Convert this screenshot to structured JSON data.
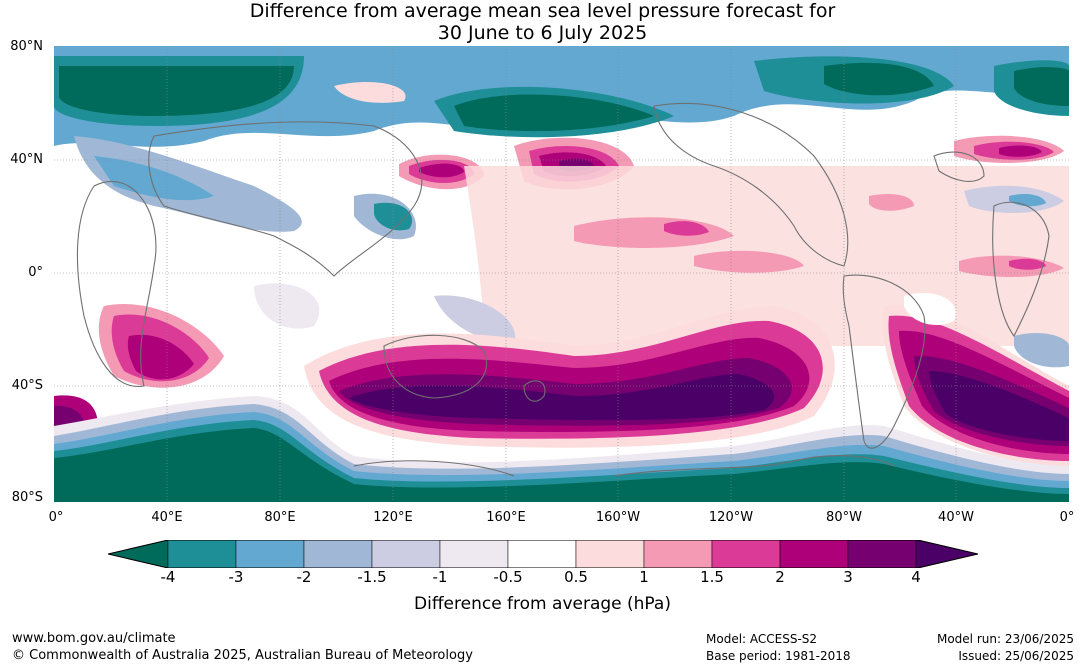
{
  "title": {
    "line1": "Difference from average mean sea level pressure forecast for",
    "line2": "30 June to 6 July 2025"
  },
  "map": {
    "lat_labels": [
      "80°N",
      "40°N",
      "0°",
      "40°S",
      "80°S"
    ],
    "lon_labels": [
      "0°",
      "40°E",
      "80°E",
      "120°E",
      "160°E",
      "160°W",
      "120°W",
      "80°W",
      "40°W",
      "0°"
    ]
  },
  "colorbar": {
    "ticks": [
      "-4",
      "-3",
      "-2",
      "-1.5",
      "-1",
      "-0.5",
      "0.5",
      "1",
      "1.5",
      "2",
      "3",
      "4"
    ],
    "colors": [
      "#006b5b",
      "#1f8f97",
      "#62a8d0",
      "#a0b8d6",
      "#cccce2",
      "#eee8f0",
      "#ffffff",
      "#fcdcdc",
      "#f49ab5",
      "#dc3a97",
      "#ad0079",
      "#770070",
      "#4b0068"
    ],
    "label": "Difference from average (hPa)"
  },
  "footer": {
    "website": "www.bom.gov.au/climate",
    "copyright": "© Commonwealth of Australia 2025, Australian Bureau of Meteorology",
    "model": "Model: ACCESS-S2",
    "base_period": "Base period: 1981-2018",
    "model_run": "Model run: 23/06/2025",
    "issued": "Issued: 25/06/2025"
  }
}
